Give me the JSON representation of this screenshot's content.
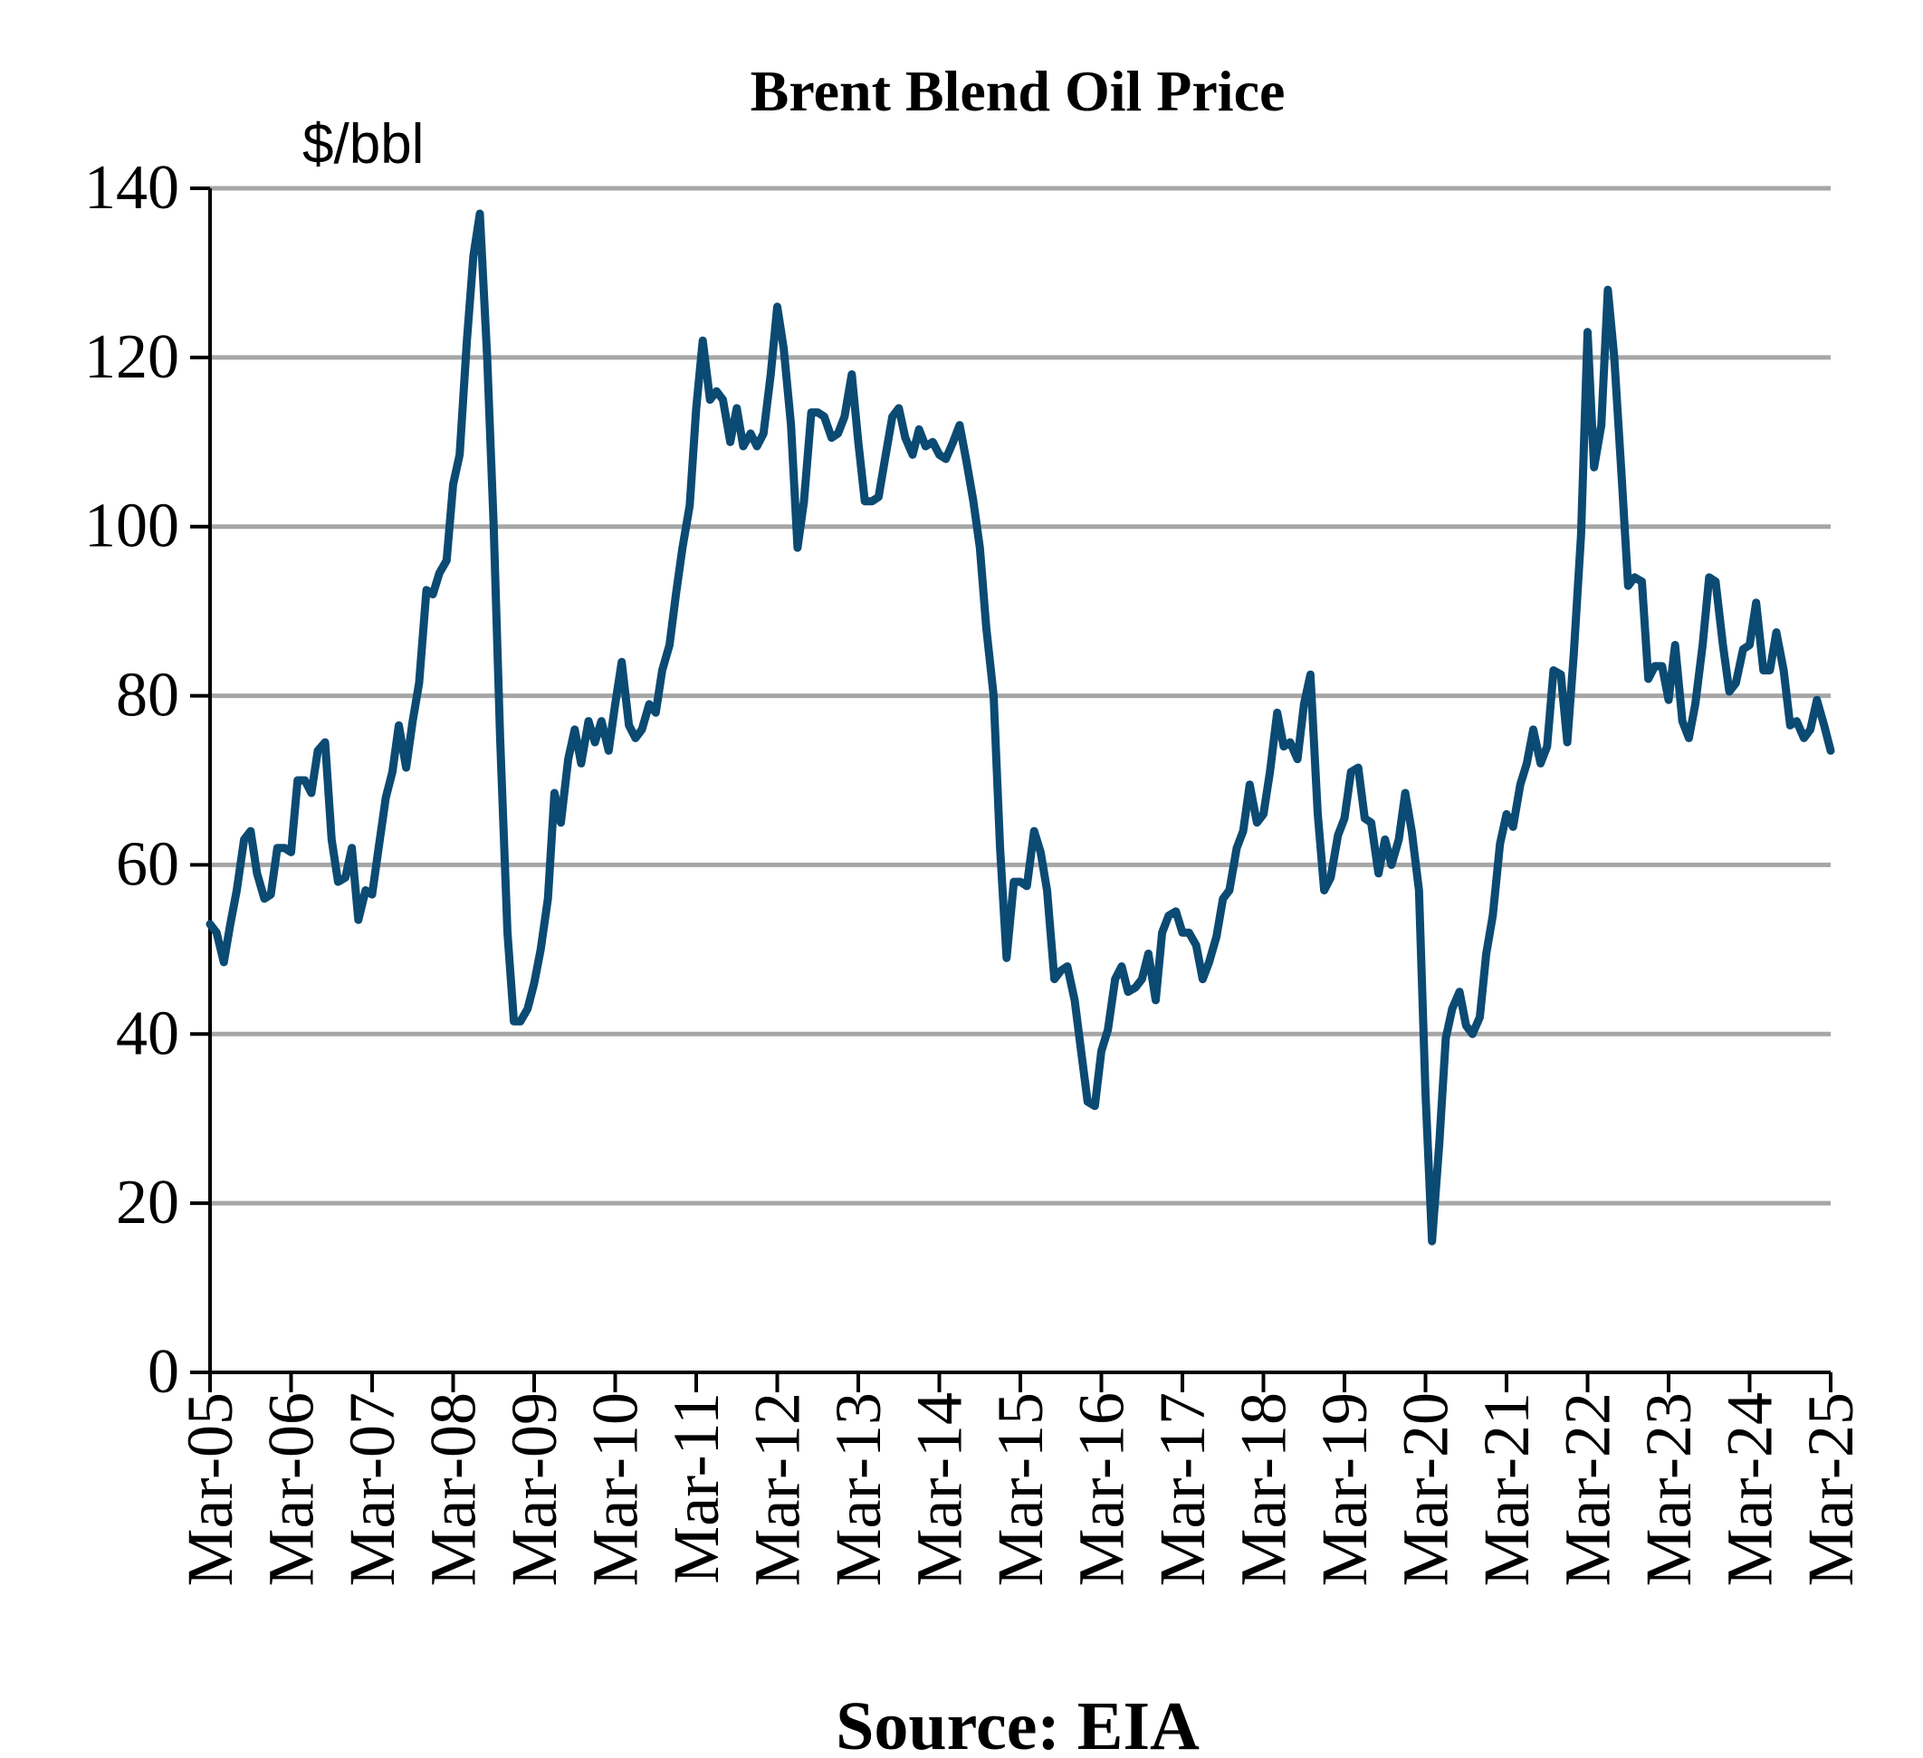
{
  "chart_data": {
    "type": "line",
    "title": "Brent Blend Oil Price",
    "ylabel": "$/bbl",
    "xlabel": "",
    "source": "Source: EIA",
    "ylim": [
      0,
      140
    ],
    "yticks": [
      0,
      20,
      40,
      60,
      80,
      100,
      120,
      140
    ],
    "xlim": [
      2005.0,
      2025.0
    ],
    "xtick_labels": [
      "Mar-05",
      "Mar-06",
      "Mar-07",
      "Mar-08",
      "Mar-09",
      "Mar-10",
      "Mar-11",
      "Mar-12",
      "Mar-13",
      "Mar-14",
      "Mar-15",
      "Mar-16",
      "Mar-17",
      "Mar-18",
      "Mar-19",
      "Mar-20",
      "Mar-21",
      "Mar-22",
      "Mar-23",
      "Mar-24",
      "Mar-25"
    ],
    "grid": true,
    "colors": {
      "line": "#0b4a72",
      "grid": "#a6a6a6",
      "axis": "#000000",
      "text": "#000000"
    },
    "series": [
      {
        "name": "Brent Blend",
        "x_unit": "years since Mar-05",
        "points": [
          [
            0.0,
            53
          ],
          [
            0.08,
            52
          ],
          [
            0.17,
            48.5
          ],
          [
            0.25,
            53
          ],
          [
            0.33,
            57
          ],
          [
            0.42,
            63
          ],
          [
            0.5,
            64
          ],
          [
            0.58,
            59
          ],
          [
            0.67,
            56
          ],
          [
            0.75,
            56.5
          ],
          [
            0.83,
            62
          ],
          [
            0.92,
            62
          ],
          [
            1.0,
            61.5
          ],
          [
            1.08,
            70
          ],
          [
            1.17,
            70
          ],
          [
            1.25,
            68.5
          ],
          [
            1.33,
            73.5
          ],
          [
            1.42,
            74.5
          ],
          [
            1.5,
            63
          ],
          [
            1.58,
            58
          ],
          [
            1.67,
            58.5
          ],
          [
            1.75,
            62
          ],
          [
            1.83,
            53.5
          ],
          [
            1.92,
            57
          ],
          [
            2.0,
            56.5
          ],
          [
            2.08,
            62
          ],
          [
            2.17,
            68
          ],
          [
            2.25,
            71
          ],
          [
            2.33,
            76.5
          ],
          [
            2.42,
            71.5
          ],
          [
            2.5,
            77
          ],
          [
            2.58,
            81.5
          ],
          [
            2.67,
            92.5
          ],
          [
            2.75,
            92
          ],
          [
            2.83,
            94.5
          ],
          [
            2.92,
            96
          ],
          [
            3.0,
            105
          ],
          [
            3.08,
            108.5
          ],
          [
            3.17,
            122
          ],
          [
            3.25,
            132
          ],
          [
            3.33,
            137
          ],
          [
            3.42,
            120
          ],
          [
            3.5,
            100
          ],
          [
            3.58,
            75
          ],
          [
            3.67,
            52
          ],
          [
            3.75,
            41.5
          ],
          [
            3.83,
            41.5
          ],
          [
            3.92,
            43
          ],
          [
            4.0,
            46
          ],
          [
            4.08,
            50
          ],
          [
            4.17,
            56
          ],
          [
            4.25,
            68.5
          ],
          [
            4.33,
            65
          ],
          [
            4.42,
            72.5
          ],
          [
            4.5,
            76
          ],
          [
            4.58,
            72
          ],
          [
            4.67,
            77
          ],
          [
            4.75,
            74.5
          ],
          [
            4.83,
            77
          ],
          [
            4.92,
            73.5
          ],
          [
            5.0,
            79
          ],
          [
            5.08,
            84
          ],
          [
            5.17,
            76.5
          ],
          [
            5.25,
            75
          ],
          [
            5.33,
            76
          ],
          [
            5.42,
            79
          ],
          [
            5.5,
            78
          ],
          [
            5.58,
            83
          ],
          [
            5.67,
            86
          ],
          [
            5.75,
            92
          ],
          [
            5.83,
            97.5
          ],
          [
            5.92,
            102.5
          ],
          [
            6.0,
            114
          ],
          [
            6.08,
            122
          ],
          [
            6.17,
            115
          ],
          [
            6.25,
            116
          ],
          [
            6.33,
            115
          ],
          [
            6.42,
            110
          ],
          [
            6.5,
            114
          ],
          [
            6.58,
            109.5
          ],
          [
            6.67,
            111
          ],
          [
            6.75,
            109.5
          ],
          [
            6.83,
            111
          ],
          [
            6.92,
            118
          ],
          [
            7.0,
            126
          ],
          [
            7.08,
            121
          ],
          [
            7.17,
            112
          ],
          [
            7.25,
            97.5
          ],
          [
            7.33,
            103
          ],
          [
            7.42,
            113.5
          ],
          [
            7.5,
            113.5
          ],
          [
            7.58,
            113
          ],
          [
            7.67,
            110.5
          ],
          [
            7.75,
            111
          ],
          [
            7.83,
            113
          ],
          [
            7.92,
            118
          ],
          [
            8.0,
            110
          ],
          [
            8.08,
            103
          ],
          [
            8.17,
            103
          ],
          [
            8.25,
            103.5
          ],
          [
            8.33,
            108
          ],
          [
            8.42,
            113
          ],
          [
            8.5,
            114
          ],
          [
            8.58,
            110.5
          ],
          [
            8.67,
            108.5
          ],
          [
            8.75,
            111.5
          ],
          [
            8.83,
            109.5
          ],
          [
            8.92,
            110
          ],
          [
            9.0,
            108.5
          ],
          [
            9.08,
            108
          ],
          [
            9.17,
            110
          ],
          [
            9.25,
            112
          ],
          [
            9.33,
            108
          ],
          [
            9.42,
            103
          ],
          [
            9.5,
            97.5
          ],
          [
            9.58,
            88
          ],
          [
            9.67,
            80
          ],
          [
            9.75,
            62
          ],
          [
            9.83,
            49
          ],
          [
            9.92,
            58
          ],
          [
            10.0,
            58
          ],
          [
            10.08,
            57.5
          ],
          [
            10.17,
            64
          ],
          [
            10.25,
            61.5
          ],
          [
            10.33,
            57
          ],
          [
            10.42,
            46.5
          ],
          [
            10.5,
            47.5
          ],
          [
            10.58,
            48
          ],
          [
            10.67,
            44
          ],
          [
            10.75,
            38
          ],
          [
            10.83,
            32
          ],
          [
            10.92,
            31.5
          ],
          [
            11.0,
            38
          ],
          [
            11.08,
            40.5
          ],
          [
            11.17,
            46.5
          ],
          [
            11.25,
            48
          ],
          [
            11.33,
            45
          ],
          [
            11.42,
            45.5
          ],
          [
            11.5,
            46.5
          ],
          [
            11.58,
            49.5
          ],
          [
            11.67,
            44
          ],
          [
            11.75,
            52
          ],
          [
            11.83,
            54
          ],
          [
            11.92,
            54.5
          ],
          [
            12.0,
            52
          ],
          [
            12.08,
            52
          ],
          [
            12.17,
            50.5
          ],
          [
            12.25,
            46.5
          ],
          [
            12.33,
            48.5
          ],
          [
            12.42,
            51.5
          ],
          [
            12.5,
            56
          ],
          [
            12.58,
            57
          ],
          [
            12.67,
            62
          ],
          [
            12.75,
            64
          ],
          [
            12.83,
            69.5
          ],
          [
            12.92,
            65
          ],
          [
            13.0,
            66
          ],
          [
            13.08,
            71
          ],
          [
            13.17,
            78
          ],
          [
            13.25,
            74
          ],
          [
            13.33,
            74.5
          ],
          [
            13.42,
            72.5
          ],
          [
            13.5,
            79
          ],
          [
            13.58,
            82.5
          ],
          [
            13.67,
            66
          ],
          [
            13.75,
            57
          ],
          [
            13.83,
            58.5
          ],
          [
            13.92,
            63.5
          ],
          [
            14.0,
            65.5
          ],
          [
            14.08,
            71
          ],
          [
            14.17,
            71.5
          ],
          [
            14.25,
            65.5
          ],
          [
            14.33,
            65
          ],
          [
            14.42,
            59
          ],
          [
            14.5,
            63
          ],
          [
            14.58,
            60
          ],
          [
            14.67,
            63
          ],
          [
            14.75,
            68.5
          ],
          [
            14.83,
            64
          ],
          [
            14.92,
            57
          ],
          [
            15.0,
            33
          ],
          [
            15.08,
            15.5
          ],
          [
            15.17,
            27
          ],
          [
            15.25,
            39.5
          ],
          [
            15.33,
            43
          ],
          [
            15.42,
            45
          ],
          [
            15.5,
            41
          ],
          [
            15.58,
            40
          ],
          [
            15.67,
            42
          ],
          [
            15.75,
            49.5
          ],
          [
            15.83,
            54
          ],
          [
            15.92,
            62.5
          ],
          [
            16.0,
            66
          ],
          [
            16.08,
            64.5
          ],
          [
            16.17,
            69.5
          ],
          [
            16.25,
            72
          ],
          [
            16.33,
            76
          ],
          [
            16.42,
            72
          ],
          [
            16.5,
            74
          ],
          [
            16.58,
            83
          ],
          [
            16.67,
            82.5
          ],
          [
            16.75,
            74.5
          ],
          [
            16.83,
            85
          ],
          [
            16.92,
            99
          ],
          [
            17.0,
            123
          ],
          [
            17.08,
            107
          ],
          [
            17.17,
            112
          ],
          [
            17.25,
            128
          ],
          [
            17.33,
            120
          ],
          [
            17.42,
            106
          ],
          [
            17.5,
            93
          ],
          [
            17.58,
            94
          ],
          [
            17.67,
            93.5
          ],
          [
            17.75,
            82
          ],
          [
            17.83,
            83.5
          ],
          [
            17.92,
            83.5
          ],
          [
            18.0,
            79.5
          ],
          [
            18.08,
            86
          ],
          [
            18.17,
            77
          ],
          [
            18.25,
            75
          ],
          [
            18.33,
            79
          ],
          [
            18.42,
            86
          ],
          [
            18.5,
            94
          ],
          [
            18.58,
            93.5
          ],
          [
            18.67,
            86
          ],
          [
            18.75,
            80.5
          ],
          [
            18.83,
            81.5
          ],
          [
            18.92,
            85.5
          ],
          [
            19.0,
            86
          ],
          [
            19.08,
            91
          ],
          [
            19.17,
            83
          ],
          [
            19.25,
            83
          ],
          [
            19.33,
            87.5
          ],
          [
            19.42,
            83
          ],
          [
            19.5,
            76.5
          ],
          [
            19.58,
            77
          ],
          [
            19.67,
            75
          ],
          [
            19.75,
            76
          ],
          [
            19.83,
            79.5
          ],
          [
            19.92,
            76.5
          ],
          [
            20.0,
            73.5
          ]
        ]
      }
    ]
  }
}
